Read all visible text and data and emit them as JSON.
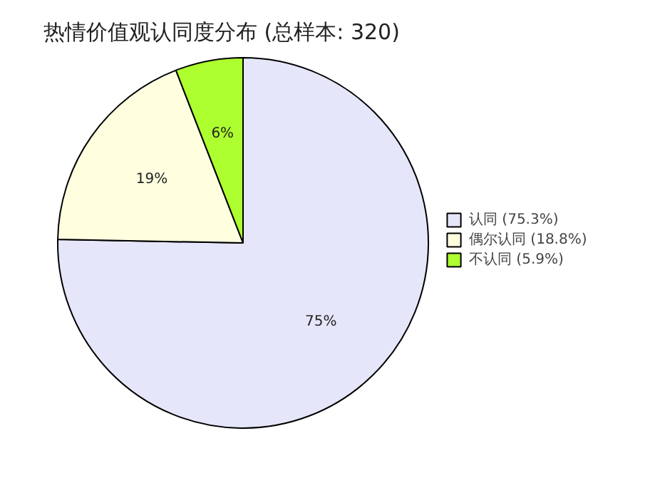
{
  "chart_data": {
    "type": "pie",
    "title": "热情价值观认同度分布 (总样本: 320)",
    "categories": [
      "认同 (75.3%)",
      "偶尔认同 (18.8%)",
      "不认同 (5.9%)"
    ],
    "values": [
      75.3,
      18.8,
      5.9
    ],
    "colors": [
      "#e6e6fa",
      "#ffffe0",
      "#adff2f"
    ],
    "value_labels": [
      "75%",
      "19%",
      "6%"
    ],
    "legend": "right"
  }
}
